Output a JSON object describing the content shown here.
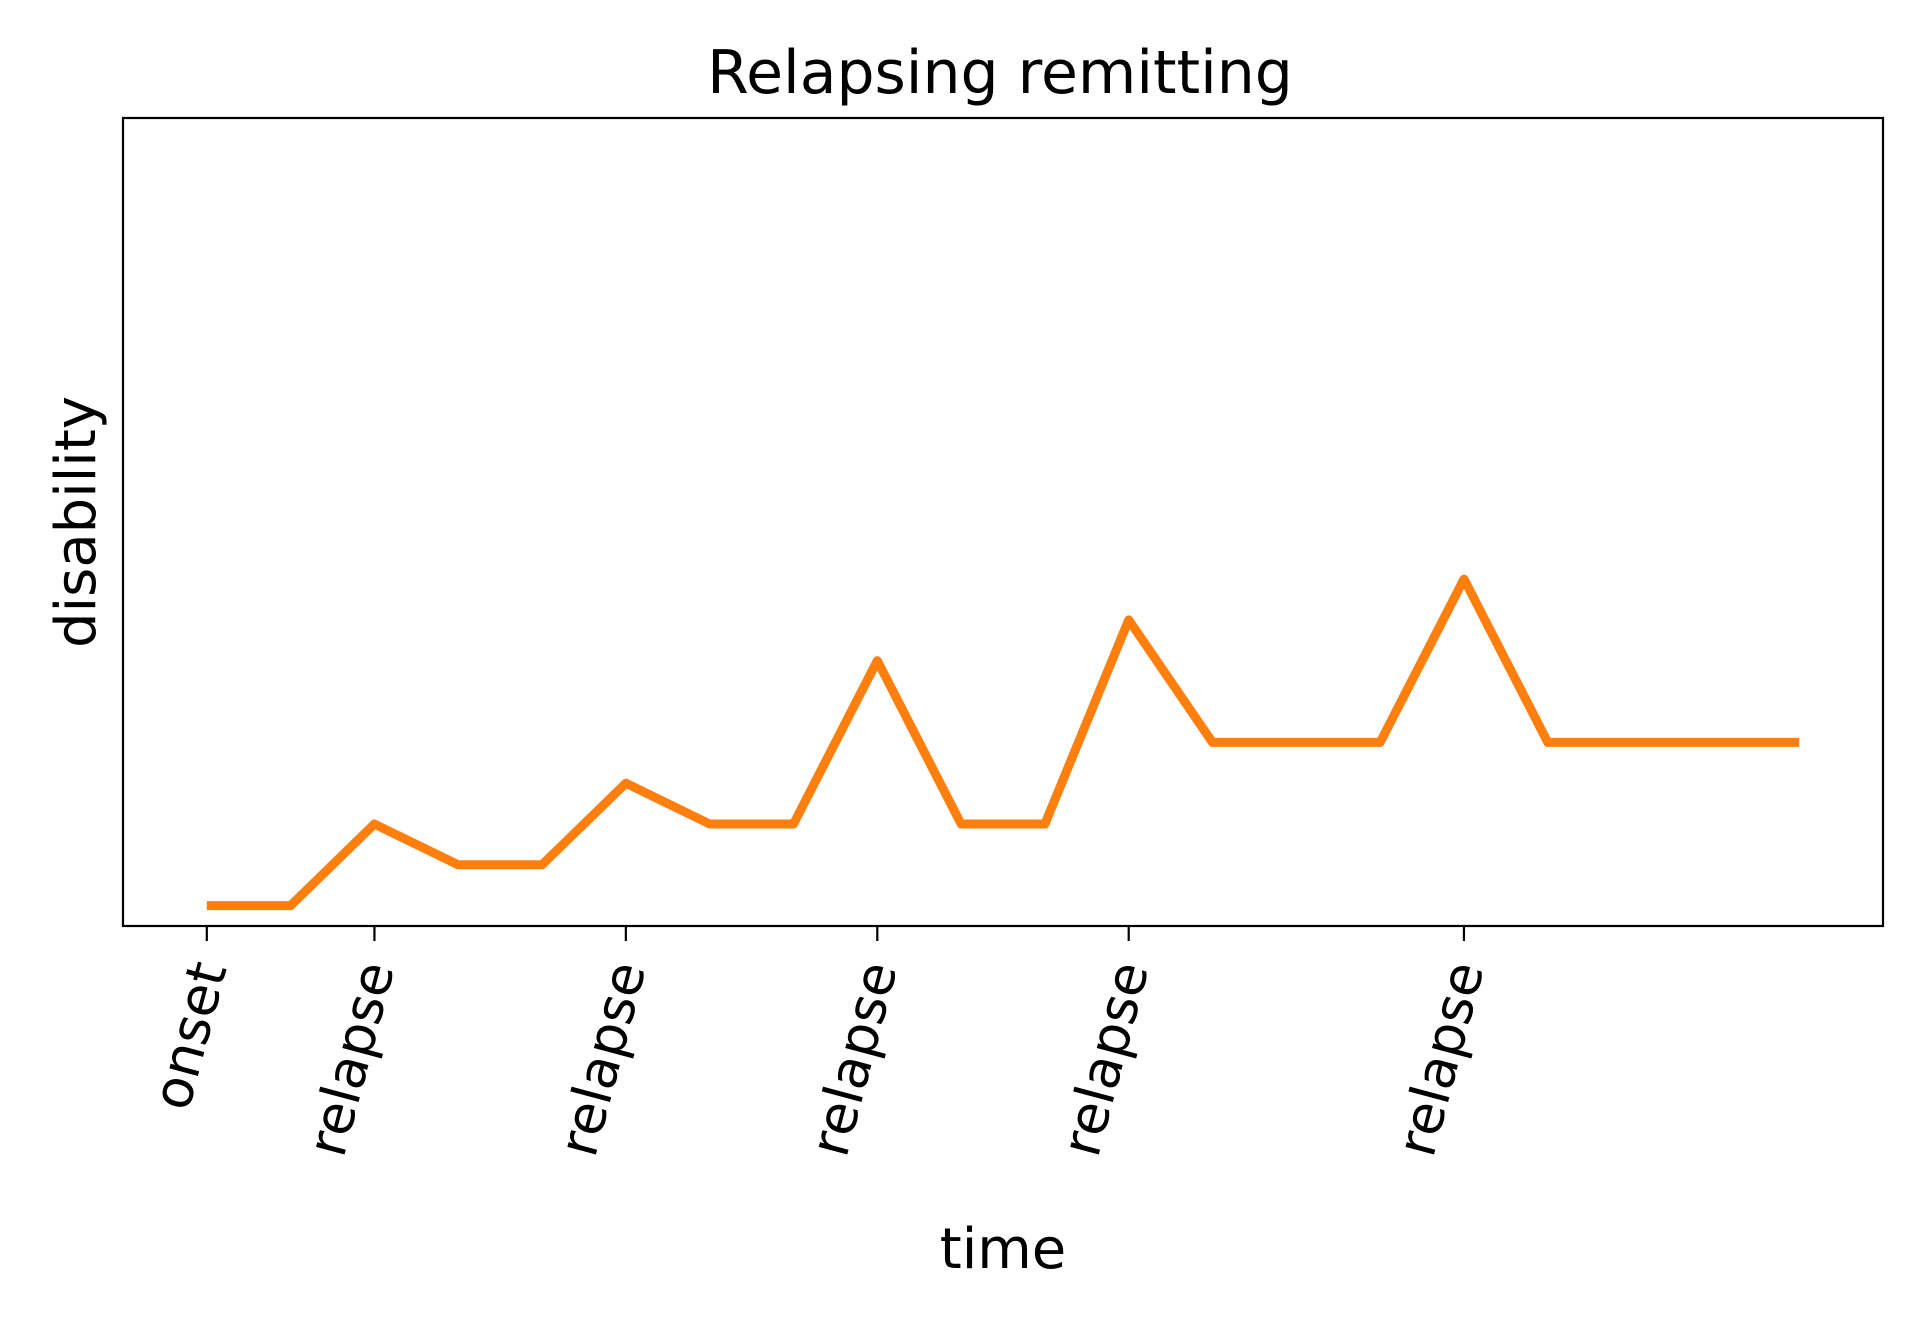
{
  "chart_data": {
    "type": "line",
    "title": "Relapsing remitting",
    "xlabel": "time",
    "ylabel": "disability",
    "xlim": [
      -1,
      20
    ],
    "ylim": [
      -0.5,
      19.3
    ],
    "grid": false,
    "x_ticks": [
      {
        "x": 0,
        "label": "onset"
      },
      {
        "x": 2,
        "label": "relapse"
      },
      {
        "x": 5,
        "label": "relapse"
      },
      {
        "x": 8,
        "label": "relapse"
      },
      {
        "x": 11,
        "label": "relapse"
      },
      {
        "x": 15,
        "label": "relapse"
      }
    ],
    "y_ticks_shown": false,
    "series": [
      {
        "color": "#ff7f0e",
        "x": [
          0,
          1,
          2,
          3,
          4,
          5,
          6,
          7,
          8,
          9,
          10,
          11,
          12,
          13,
          14,
          15,
          16,
          17,
          18,
          19
        ],
        "y": [
          0,
          0,
          2,
          1,
          1,
          3,
          2,
          2,
          6,
          2,
          2,
          7,
          4,
          4,
          4,
          8,
          4,
          4,
          4,
          4
        ]
      }
    ]
  }
}
